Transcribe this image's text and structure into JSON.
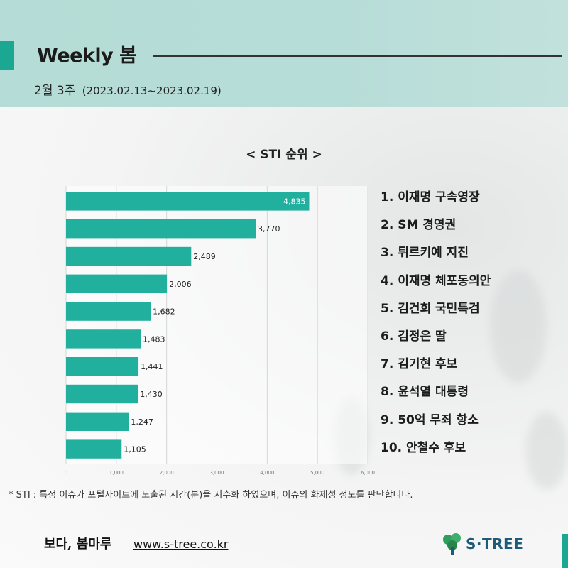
{
  "header": {
    "title": "Weekly 봄",
    "week": "2월 3주",
    "date_range": "(2023.02.13~2023.02.19)"
  },
  "chart_data": {
    "type": "bar",
    "orientation": "horizontal",
    "title": "< STI 순위 >",
    "categories": [
      "1. 이재명 구속영장",
      "2. SM 경영권",
      "3. 튀르키예 지진",
      "4. 이재명 체포동의안",
      "5. 김건희 국민특검",
      "6. 김정은 딸",
      "7. 김기현 후보",
      "8. 윤석열 대통령",
      "9. 50억 무죄 항소",
      "10. 안철수 후보"
    ],
    "values": [
      4835,
      3770,
      2489,
      2006,
      1682,
      1483,
      1441,
      1430,
      1247,
      1105
    ],
    "value_labels": [
      "4,835",
      "3,770",
      "2,489",
      "2,006",
      "1,682",
      "1,483",
      "1,441",
      "1,430",
      "1,247",
      "1,105"
    ],
    "xlim": [
      0,
      6000
    ],
    "xticks": [
      0,
      1000,
      2000,
      3000,
      4000,
      5000,
      6000
    ],
    "xtick_labels": [
      "0",
      "1,000",
      "2,000",
      "3,000",
      "4,000",
      "5,000",
      "6,000"
    ],
    "grid": true,
    "bar_color": "#21b09d"
  },
  "footnote": "* STI : 특정 이슈가 포털사이트에 노출된 시간(분)을 지수화 하였으며, 이슈의 화제성 정도를 판단합니다.",
  "footer": {
    "brand": "보다, 봄마루",
    "url": "www.s-tree.co.kr",
    "logo_text": "S·TREE",
    "logo_icon": "tree-icon",
    "accent_color": "#1aa892"
  }
}
